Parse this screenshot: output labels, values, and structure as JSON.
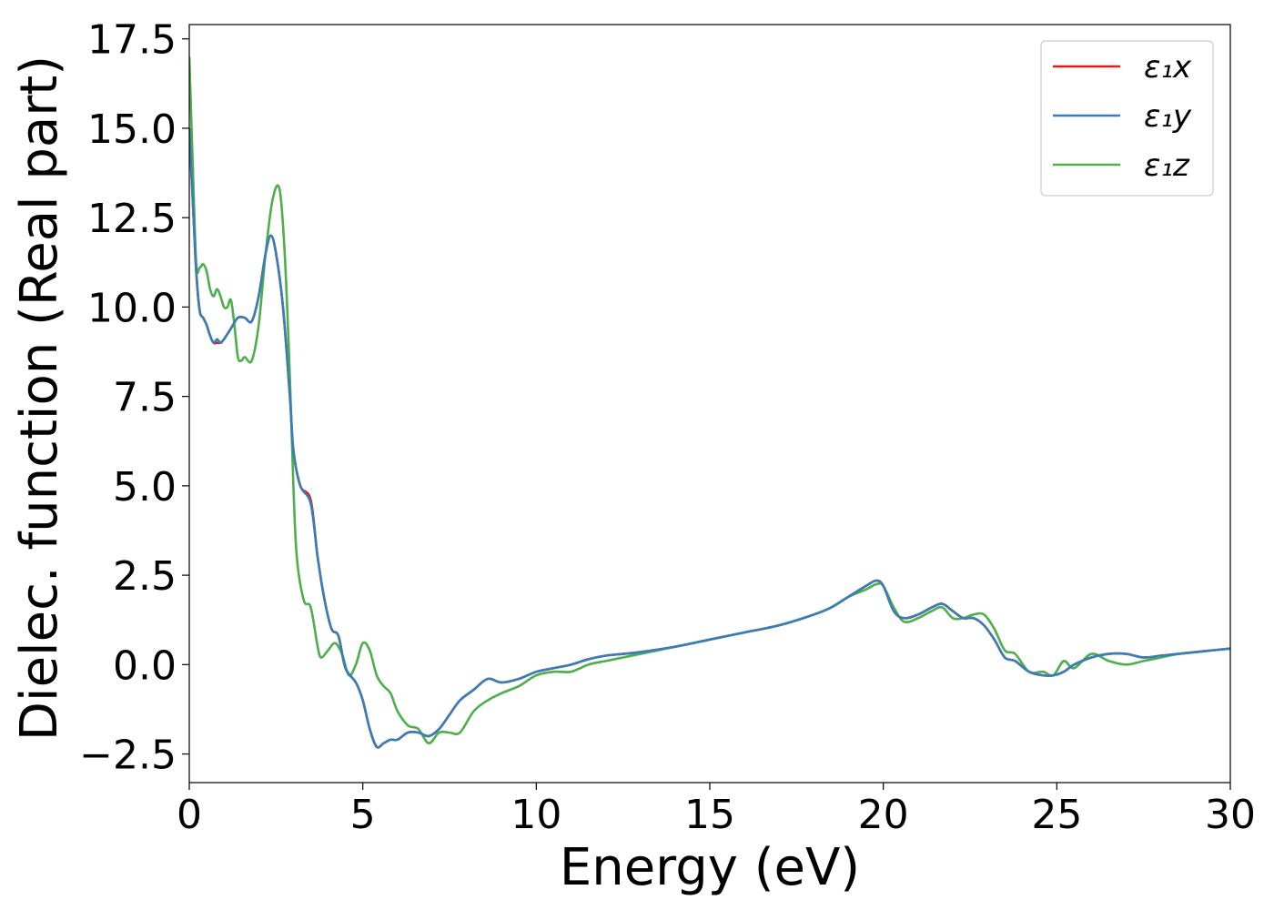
{
  "chart_data": {
    "type": "line",
    "xlabel": "Energy (eV)",
    "ylabel": "Dielec. function (Real part)",
    "xlim": [
      0,
      30
    ],
    "ylim": [
      -3.3,
      17.9
    ],
    "xticks": [
      0,
      5,
      10,
      15,
      20,
      25,
      30
    ],
    "xtick_labels": [
      "0",
      "5",
      "10",
      "15",
      "20",
      "25",
      "30"
    ],
    "yticks": [
      -2.5,
      0.0,
      2.5,
      5.0,
      7.5,
      10.0,
      12.5,
      15.0,
      17.5
    ],
    "ytick_labels": [
      "−2.5",
      "0.0",
      "2.5",
      "5.0",
      "7.5",
      "10.0",
      "12.5",
      "15.0",
      "17.5"
    ],
    "grid": false,
    "legend_position": "top-right",
    "series": [
      {
        "name": "ε₁x",
        "color": "#e41a1c",
        "x": [
          0,
          0.1,
          0.2,
          0.3,
          0.4,
          0.5,
          0.6,
          0.7,
          0.8,
          0.9,
          1.0,
          1.2,
          1.4,
          1.6,
          1.8,
          2.0,
          2.2,
          2.35,
          2.5,
          2.7,
          2.9,
          3.0,
          3.2,
          3.5,
          3.7,
          3.9,
          4.1,
          4.3,
          4.5,
          4.8,
          5.0,
          5.2,
          5.4,
          5.6,
          5.8,
          6.0,
          6.3,
          6.6,
          6.9,
          7.2,
          7.5,
          7.8,
          8.2,
          8.6,
          9.0,
          9.5,
          10.0,
          10.5,
          11.0,
          11.5,
          12.0,
          12.5,
          13.0,
          14.0,
          15.0,
          16.0,
          17.0,
          18.0,
          18.5,
          19.0,
          19.5,
          19.8,
          20.0,
          20.3,
          20.6,
          21.0,
          21.4,
          21.7,
          22.0,
          22.3,
          22.6,
          22.9,
          23.2,
          23.5,
          23.8,
          24.2,
          24.6,
          24.9,
          25.2,
          25.5,
          26.0,
          26.5,
          27.0,
          27.5,
          28.0,
          28.5,
          29.0,
          29.5,
          30.0
        ],
        "y": [
          15.0,
          13.0,
          11.0,
          9.9,
          9.7,
          9.5,
          9.2,
          9.0,
          9.0,
          9.0,
          9.1,
          9.4,
          9.7,
          9.7,
          9.6,
          10.3,
          11.5,
          12.0,
          11.5,
          10.0,
          7.5,
          6.0,
          5.0,
          4.6,
          3.0,
          1.8,
          1.0,
          0.8,
          -0.1,
          -0.5,
          -1.0,
          -1.8,
          -2.3,
          -2.2,
          -2.1,
          -2.1,
          -1.9,
          -1.9,
          -2.0,
          -1.8,
          -1.4,
          -1.0,
          -0.7,
          -0.4,
          -0.5,
          -0.4,
          -0.2,
          -0.1,
          0.0,
          0.15,
          0.25,
          0.3,
          0.35,
          0.5,
          0.7,
          0.9,
          1.1,
          1.4,
          1.6,
          1.9,
          2.2,
          2.35,
          2.2,
          1.5,
          1.3,
          1.4,
          1.6,
          1.7,
          1.5,
          1.3,
          1.3,
          1.1,
          0.7,
          0.2,
          0.1,
          -0.2,
          -0.3,
          -0.3,
          -0.2,
          0.0,
          0.2,
          0.3,
          0.3,
          0.2,
          0.25,
          0.3,
          0.35,
          0.4,
          0.45
        ]
      },
      {
        "name": "ε₁y",
        "color": "#377eb8",
        "x": [
          0,
          0.1,
          0.2,
          0.3,
          0.4,
          0.5,
          0.6,
          0.7,
          0.8,
          0.9,
          1.0,
          1.2,
          1.4,
          1.6,
          1.8,
          2.0,
          2.2,
          2.35,
          2.5,
          2.7,
          2.9,
          3.0,
          3.2,
          3.5,
          3.7,
          3.9,
          4.1,
          4.3,
          4.5,
          4.8,
          5.0,
          5.2,
          5.4,
          5.6,
          5.8,
          6.0,
          6.3,
          6.6,
          6.9,
          7.2,
          7.5,
          7.8,
          8.2,
          8.6,
          9.0,
          9.5,
          10.0,
          10.5,
          11.0,
          11.5,
          12.0,
          12.5,
          13.0,
          14.0,
          15.0,
          16.0,
          17.0,
          18.0,
          18.5,
          19.0,
          19.5,
          19.8,
          20.0,
          20.3,
          20.6,
          21.0,
          21.4,
          21.7,
          22.0,
          22.3,
          22.6,
          22.9,
          23.2,
          23.5,
          23.8,
          24.2,
          24.6,
          24.9,
          25.2,
          25.5,
          26.0,
          26.5,
          27.0,
          27.5,
          28.0,
          28.5,
          29.0,
          29.5,
          30.0
        ],
        "y": [
          15.0,
          13.0,
          11.0,
          9.9,
          9.7,
          9.5,
          9.2,
          9.0,
          9.1,
          9.0,
          9.1,
          9.4,
          9.7,
          9.7,
          9.6,
          10.3,
          11.5,
          12.0,
          11.5,
          10.0,
          7.5,
          6.0,
          5.0,
          4.5,
          3.0,
          1.8,
          1.0,
          0.8,
          -0.1,
          -0.5,
          -1.0,
          -1.8,
          -2.3,
          -2.2,
          -2.1,
          -2.1,
          -1.9,
          -1.9,
          -2.0,
          -1.8,
          -1.4,
          -1.0,
          -0.7,
          -0.4,
          -0.5,
          -0.4,
          -0.2,
          -0.1,
          0.0,
          0.15,
          0.25,
          0.3,
          0.35,
          0.5,
          0.7,
          0.9,
          1.1,
          1.4,
          1.6,
          1.9,
          2.2,
          2.35,
          2.2,
          1.5,
          1.3,
          1.4,
          1.6,
          1.7,
          1.5,
          1.3,
          1.3,
          1.1,
          0.7,
          0.2,
          0.1,
          -0.2,
          -0.3,
          -0.3,
          -0.2,
          0.0,
          0.2,
          0.3,
          0.3,
          0.2,
          0.25,
          0.3,
          0.35,
          0.4,
          0.45
        ]
      },
      {
        "name": "ε₁z",
        "color": "#4daf4a",
        "x": [
          0,
          0.1,
          0.2,
          0.3,
          0.4,
          0.5,
          0.6,
          0.7,
          0.8,
          0.9,
          1.0,
          1.1,
          1.2,
          1.3,
          1.4,
          1.5,
          1.6,
          1.8,
          2.0,
          2.2,
          2.4,
          2.6,
          2.75,
          2.9,
          3.0,
          3.1,
          3.3,
          3.5,
          3.7,
          3.8,
          4.0,
          4.2,
          4.4,
          4.6,
          4.8,
          5.0,
          5.2,
          5.4,
          5.6,
          5.8,
          6.0,
          6.3,
          6.6,
          6.9,
          7.2,
          7.5,
          7.8,
          8.2,
          8.6,
          9.0,
          9.5,
          10.0,
          10.5,
          11.0,
          11.5,
          12.0,
          12.5,
          13.0,
          14.0,
          15.0,
          16.0,
          17.0,
          18.0,
          18.5,
          19.0,
          19.5,
          19.8,
          20.0,
          20.3,
          20.6,
          21.0,
          21.4,
          21.7,
          22.0,
          22.3,
          22.6,
          22.9,
          23.2,
          23.5,
          23.8,
          24.2,
          24.6,
          24.9,
          25.2,
          25.5,
          26.0,
          26.5,
          27.0,
          27.5,
          28.0,
          28.5,
          29.0,
          29.5,
          30.0
        ],
        "y": [
          17.0,
          14.0,
          11.2,
          11.1,
          11.2,
          11.0,
          10.5,
          10.3,
          10.5,
          10.3,
          10.0,
          10.0,
          10.2,
          9.5,
          8.6,
          8.5,
          8.6,
          8.5,
          9.5,
          11.5,
          13.0,
          13.3,
          11.5,
          8.0,
          5.0,
          3.0,
          1.8,
          1.6,
          0.5,
          0.2,
          0.4,
          0.6,
          0.3,
          -0.3,
          0.0,
          0.6,
          0.4,
          -0.3,
          -0.6,
          -0.8,
          -1.3,
          -1.7,
          -1.8,
          -2.2,
          -1.9,
          -1.9,
          -1.9,
          -1.3,
          -1.0,
          -0.8,
          -0.6,
          -0.3,
          -0.2,
          -0.2,
          0.0,
          0.1,
          0.2,
          0.3,
          0.5,
          0.7,
          0.9,
          1.1,
          1.4,
          1.6,
          1.9,
          2.1,
          2.25,
          2.2,
          1.6,
          1.2,
          1.3,
          1.5,
          1.6,
          1.3,
          1.3,
          1.4,
          1.4,
          1.0,
          0.4,
          0.3,
          -0.2,
          -0.2,
          -0.3,
          0.1,
          -0.1,
          0.3,
          0.1,
          0.0,
          0.1,
          0.2,
          0.3,
          0.35,
          0.4,
          0.45
        ]
      }
    ]
  }
}
